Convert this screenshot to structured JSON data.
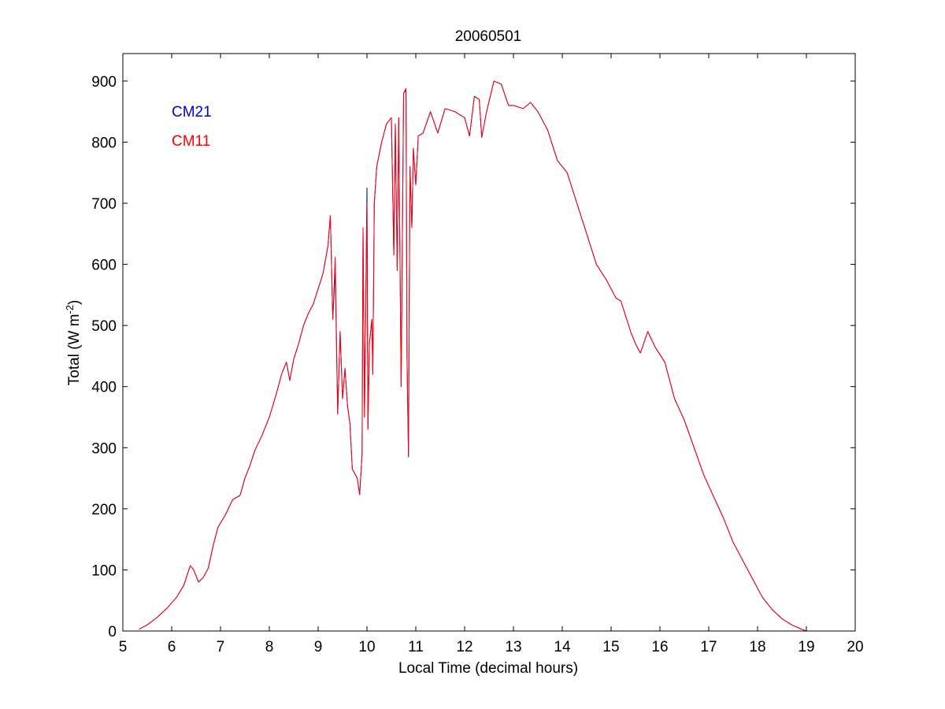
{
  "chart_data": {
    "type": "line",
    "title": "20060501",
    "xlabel": "Local Time (decimal hours)",
    "ylabel_main": "Total (W m",
    "ylabel_sup": "-2",
    "ylabel_close": ")",
    "xlim": [
      5,
      20
    ],
    "ylim": [
      0,
      945
    ],
    "xticks": [
      5,
      6,
      7,
      8,
      9,
      10,
      11,
      12,
      13,
      14,
      15,
      16,
      17,
      18,
      19,
      20
    ],
    "yticks": [
      0,
      100,
      200,
      300,
      400,
      500,
      600,
      700,
      800,
      900
    ],
    "grid": false,
    "legend_placement": "top-left",
    "series": [
      {
        "name": "CM21",
        "color": "#0000cc",
        "points": [
          [
            5.33,
            3
          ],
          [
            5.5,
            10
          ],
          [
            5.7,
            22
          ],
          [
            5.9,
            37
          ],
          [
            6.1,
            55
          ],
          [
            6.25,
            75
          ],
          [
            6.38,
            107
          ],
          [
            6.45,
            100
          ],
          [
            6.55,
            80
          ],
          [
            6.65,
            88
          ],
          [
            6.75,
            103
          ],
          [
            6.85,
            140
          ],
          [
            6.95,
            170
          ],
          [
            7.1,
            190
          ],
          [
            7.25,
            215
          ],
          [
            7.4,
            222
          ],
          [
            7.5,
            250
          ],
          [
            7.6,
            270
          ],
          [
            7.7,
            295
          ],
          [
            7.85,
            320
          ],
          [
            8.0,
            350
          ],
          [
            8.15,
            390
          ],
          [
            8.25,
            420
          ],
          [
            8.35,
            440
          ],
          [
            8.42,
            410
          ],
          [
            8.5,
            445
          ],
          [
            8.6,
            470
          ],
          [
            8.7,
            500
          ],
          [
            8.8,
            520
          ],
          [
            8.9,
            535
          ],
          [
            9.0,
            560
          ],
          [
            9.1,
            585
          ],
          [
            9.2,
            630
          ],
          [
            9.25,
            680
          ],
          [
            9.3,
            510
          ],
          [
            9.35,
            590
          ],
          [
            9.4,
            355
          ],
          [
            9.45,
            490
          ],
          [
            9.5,
            380
          ],
          [
            9.55,
            430
          ],
          [
            9.6,
            370
          ],
          [
            9.65,
            340
          ],
          [
            9.7,
            265
          ],
          [
            9.8,
            250
          ],
          [
            9.85,
            223
          ],
          [
            9.9,
            290
          ],
          [
            9.92,
            660
          ],
          [
            9.95,
            350
          ],
          [
            10.0,
            725
          ],
          [
            10.02,
            330
          ],
          [
            10.05,
            470
          ],
          [
            10.1,
            510
          ],
          [
            10.12,
            420
          ],
          [
            10.15,
            700
          ],
          [
            10.2,
            760
          ],
          [
            10.3,
            800
          ],
          [
            10.4,
            830
          ],
          [
            10.5,
            840
          ],
          [
            10.55,
            615
          ],
          [
            10.58,
            830
          ],
          [
            10.62,
            590
          ],
          [
            10.65,
            840
          ],
          [
            10.7,
            400
          ],
          [
            10.75,
            880
          ],
          [
            10.8,
            885
          ],
          [
            10.82,
            455
          ],
          [
            10.85,
            285
          ],
          [
            10.88,
            760
          ],
          [
            10.92,
            660
          ],
          [
            10.95,
            790
          ],
          [
            11.0,
            730
          ],
          [
            11.05,
            810
          ],
          [
            11.15,
            815
          ],
          [
            11.3,
            850
          ],
          [
            11.45,
            815
          ],
          [
            11.6,
            855
          ],
          [
            11.8,
            850
          ],
          [
            12.0,
            840
          ],
          [
            12.1,
            810
          ],
          [
            12.2,
            875
          ],
          [
            12.3,
            870
          ],
          [
            12.35,
            808
          ],
          [
            12.45,
            850
          ],
          [
            12.6,
            900
          ],
          [
            12.75,
            895
          ],
          [
            12.9,
            860
          ],
          [
            13.0,
            860
          ],
          [
            13.2,
            855
          ],
          [
            13.35,
            865
          ],
          [
            13.5,
            850
          ],
          [
            13.7,
            820
          ],
          [
            13.9,
            770
          ],
          [
            14.1,
            750
          ],
          [
            14.3,
            700
          ],
          [
            14.5,
            650
          ],
          [
            14.7,
            600
          ],
          [
            14.9,
            575
          ],
          [
            15.1,
            545
          ],
          [
            15.2,
            540
          ],
          [
            15.4,
            490
          ],
          [
            15.5,
            470
          ],
          [
            15.6,
            455
          ],
          [
            15.75,
            490
          ],
          [
            15.9,
            465
          ],
          [
            16.1,
            440
          ],
          [
            16.3,
            380
          ],
          [
            16.5,
            345
          ],
          [
            16.7,
            300
          ],
          [
            16.9,
            255
          ],
          [
            17.1,
            220
          ],
          [
            17.3,
            185
          ],
          [
            17.5,
            145
          ],
          [
            17.7,
            115
          ],
          [
            17.9,
            85
          ],
          [
            18.1,
            55
          ],
          [
            18.3,
            35
          ],
          [
            18.5,
            20
          ],
          [
            18.7,
            10
          ],
          [
            18.9,
            3
          ],
          [
            19.0,
            0
          ]
        ]
      },
      {
        "name": "CM11",
        "color": "#ff0000",
        "points": [
          [
            5.33,
            3
          ],
          [
            5.5,
            10
          ],
          [
            5.7,
            22
          ],
          [
            5.9,
            37
          ],
          [
            6.1,
            55
          ],
          [
            6.25,
            75
          ],
          [
            6.38,
            107
          ],
          [
            6.45,
            100
          ],
          [
            6.55,
            80
          ],
          [
            6.65,
            88
          ],
          [
            6.75,
            103
          ],
          [
            6.85,
            140
          ],
          [
            6.95,
            170
          ],
          [
            7.1,
            190
          ],
          [
            7.25,
            215
          ],
          [
            7.4,
            222
          ],
          [
            7.5,
            250
          ],
          [
            7.6,
            270
          ],
          [
            7.7,
            295
          ],
          [
            7.85,
            320
          ],
          [
            8.0,
            350
          ],
          [
            8.15,
            390
          ],
          [
            8.25,
            420
          ],
          [
            8.35,
            440
          ],
          [
            8.42,
            410
          ],
          [
            8.5,
            445
          ],
          [
            8.6,
            470
          ],
          [
            8.7,
            500
          ],
          [
            8.8,
            520
          ],
          [
            8.9,
            535
          ],
          [
            9.0,
            560
          ],
          [
            9.1,
            585
          ],
          [
            9.2,
            630
          ],
          [
            9.25,
            680
          ],
          [
            9.3,
            510
          ],
          [
            9.35,
            612
          ],
          [
            9.4,
            355
          ],
          [
            9.45,
            490
          ],
          [
            9.5,
            380
          ],
          [
            9.55,
            430
          ],
          [
            9.6,
            370
          ],
          [
            9.65,
            340
          ],
          [
            9.7,
            265
          ],
          [
            9.8,
            250
          ],
          [
            9.85,
            223
          ],
          [
            9.9,
            290
          ],
          [
            9.92,
            660
          ],
          [
            9.95,
            350
          ],
          [
            10.0,
            700
          ],
          [
            10.02,
            330
          ],
          [
            10.05,
            470
          ],
          [
            10.1,
            510
          ],
          [
            10.12,
            420
          ],
          [
            10.15,
            700
          ],
          [
            10.2,
            760
          ],
          [
            10.3,
            800
          ],
          [
            10.4,
            830
          ],
          [
            10.5,
            840
          ],
          [
            10.55,
            615
          ],
          [
            10.58,
            830
          ],
          [
            10.62,
            590
          ],
          [
            10.65,
            840
          ],
          [
            10.7,
            400
          ],
          [
            10.75,
            880
          ],
          [
            10.8,
            888
          ],
          [
            10.82,
            450
          ],
          [
            10.85,
            288
          ],
          [
            10.88,
            760
          ],
          [
            10.92,
            660
          ],
          [
            10.95,
            790
          ],
          [
            11.0,
            730
          ],
          [
            11.05,
            810
          ],
          [
            11.15,
            815
          ],
          [
            11.3,
            850
          ],
          [
            11.45,
            815
          ],
          [
            11.6,
            855
          ],
          [
            11.8,
            850
          ],
          [
            12.0,
            840
          ],
          [
            12.1,
            810
          ],
          [
            12.2,
            875
          ],
          [
            12.3,
            870
          ],
          [
            12.35,
            808
          ],
          [
            12.45,
            850
          ],
          [
            12.6,
            900
          ],
          [
            12.75,
            895
          ],
          [
            12.9,
            860
          ],
          [
            13.0,
            860
          ],
          [
            13.2,
            855
          ],
          [
            13.35,
            865
          ],
          [
            13.5,
            850
          ],
          [
            13.7,
            820
          ],
          [
            13.9,
            770
          ],
          [
            14.1,
            750
          ],
          [
            14.3,
            700
          ],
          [
            14.5,
            650
          ],
          [
            14.7,
            600
          ],
          [
            14.9,
            575
          ],
          [
            15.1,
            545
          ],
          [
            15.2,
            540
          ],
          [
            15.4,
            490
          ],
          [
            15.5,
            470
          ],
          [
            15.6,
            455
          ],
          [
            15.75,
            490
          ],
          [
            15.9,
            465
          ],
          [
            16.1,
            440
          ],
          [
            16.3,
            380
          ],
          [
            16.5,
            345
          ],
          [
            16.7,
            300
          ],
          [
            16.9,
            255
          ],
          [
            17.1,
            220
          ],
          [
            17.3,
            185
          ],
          [
            17.5,
            145
          ],
          [
            17.7,
            115
          ],
          [
            17.9,
            85
          ],
          [
            18.1,
            55
          ],
          [
            18.3,
            35
          ],
          [
            18.5,
            20
          ],
          [
            18.7,
            10
          ],
          [
            18.9,
            3
          ],
          [
            19.0,
            0
          ]
        ]
      }
    ]
  }
}
